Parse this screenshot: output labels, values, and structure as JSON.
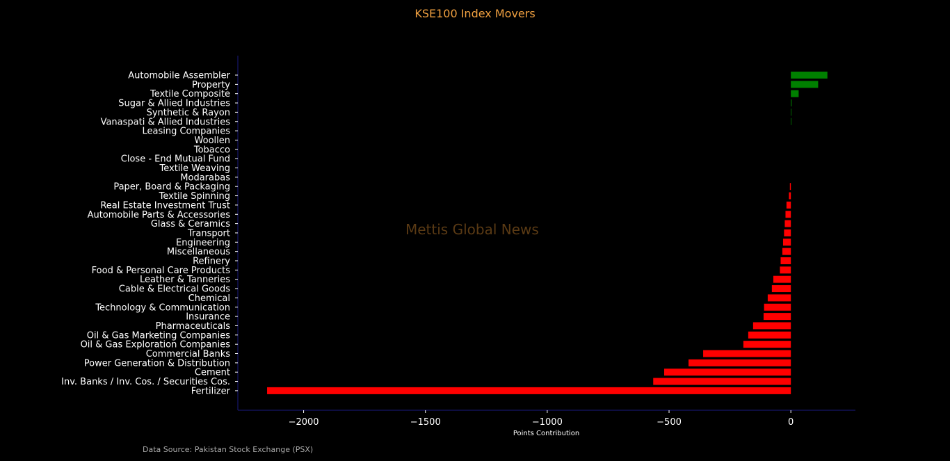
{
  "chart_data": {
    "type": "bar",
    "orientation": "horizontal",
    "title": "KSE100 Index Movers",
    "xlabel": "Points Contribution",
    "ylabel": "",
    "xlim": [
      -2270,
      265
    ],
    "xticks": [
      -2000,
      -1500,
      -1000,
      -500,
      0
    ],
    "xtick_labels": [
      "−2000",
      "−1500",
      "−1000",
      "−500",
      "0"
    ],
    "categories": [
      "Automobile Assembler",
      "Property",
      "Textile Composite",
      "Sugar & Allied Industries",
      "Synthetic & Rayon",
      "Vanaspati & Allied Industries",
      "Leasing Companies",
      "Woollen",
      "Tobacco",
      "Close - End Mutual Fund",
      "Textile Weaving",
      "Modarabas",
      "Paper, Board & Packaging",
      "Textile Spinning",
      "Real Estate Investment Trust",
      "Automobile Parts & Accessories",
      "Glass & Ceramics",
      "Transport",
      "Engineering",
      "Miscellaneous",
      "Refinery",
      "Food & Personal Care Products",
      "Leather & Tanneries",
      "Cable & Electrical Goods",
      "Chemical",
      "Technology & Communication",
      "Insurance",
      "Pharmaceuticals",
      "Oil & Gas Marketing Companies",
      "Oil & Gas Exploration Companies",
      "Commercial Banks",
      "Power Generation & Distribution",
      "Cement",
      "Inv. Banks / Inv. Cos. / Securities Cos.",
      "Fertilizer"
    ],
    "values": [
      150,
      112,
      32,
      3,
      2,
      2,
      0,
      0,
      0,
      0,
      0,
      0,
      -4,
      -8,
      -18,
      -22,
      -25,
      -28,
      -32,
      -35,
      -42,
      -45,
      -72,
      -78,
      -95,
      -110,
      -112,
      -155,
      -175,
      -195,
      -360,
      -420,
      -520,
      -565,
      -2150
    ],
    "positive_color": "#008000",
    "negative_color": "#ff0000",
    "grid": false
  },
  "footer": {
    "source": "Data Source: Pakistan Stock Exchange (PSX)",
    "watermark": "Mettis Global News"
  }
}
